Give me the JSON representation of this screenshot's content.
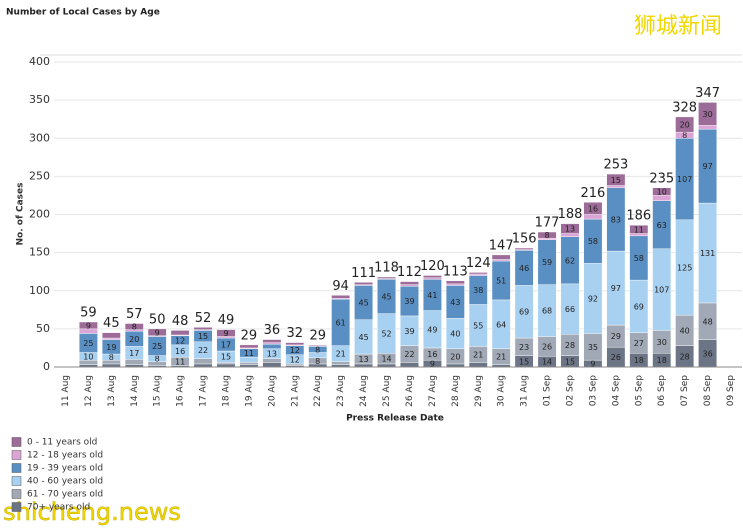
{
  "chart_data": {
    "type": "stacked-bar",
    "title": "Number of Local Cases by Age",
    "y_label": "No. of Cases",
    "x_label": "Press Release Date",
    "watermarks": [
      "狮城新闻",
      "shicheng.news"
    ],
    "categories": [
      "11 Aug",
      "12 Aug",
      "13 Aug",
      "14 Aug",
      "15 Aug",
      "16 Aug",
      "17 Aug",
      "18 Aug",
      "19 Aug",
      "20 Aug",
      "21 Aug",
      "22 Aug",
      "23 Aug",
      "24 Aug",
      "25 Aug",
      "26 Aug",
      "27 Aug",
      "28 Aug",
      "29 Aug",
      "30 Aug",
      "31 Aug",
      "01 Sep",
      "02 Sep",
      "03 Sep",
      "04 Sep",
      "05 Sep",
      "06 Sep",
      "07 Sep",
      "08 Sep",
      "09 Sep"
    ],
    "totals": [
      null,
      59,
      45,
      57,
      50,
      48,
      52,
      49,
      29,
      36,
      32,
      29,
      94,
      111,
      118,
      112,
      120,
      113,
      124,
      147,
      156,
      177,
      188,
      216,
      253,
      186,
      235,
      328,
      347,
      null
    ],
    "series": [
      {
        "name": "0 - 11 years old",
        "color": "#9c6b98",
        "values": [
          null,
          9,
          7,
          8,
          9,
          6,
          3,
          9,
          4,
          4,
          3,
          1,
          4,
          3,
          2,
          4,
          3,
          4,
          2,
          6,
          2,
          8,
          13,
          16,
          15,
          11,
          10,
          20,
          30,
          null
        ]
      },
      {
        "name": "12 - 18 years old",
        "color": "#dba6d6",
        "values": [
          null,
          6,
          2,
          2,
          1,
          1,
          1,
          2,
          1,
          2,
          1,
          1,
          1,
          1,
          1,
          2,
          2,
          2,
          2,
          2,
          1,
          2,
          4,
          6,
          3,
          3,
          7,
          8,
          5,
          null
        ]
      },
      {
        "name": "19 - 39 years old",
        "color": "#5a8fc3",
        "values": [
          null,
          25,
          19,
          20,
          25,
          12,
          15,
          17,
          11,
          6,
          12,
          8,
          61,
          45,
          45,
          39,
          41,
          43,
          38,
          51,
          46,
          59,
          62,
          58,
          83,
          58,
          63,
          107,
          97,
          null
        ]
      },
      {
        "name": "40 - 60 years old",
        "color": "#a8d0f0",
        "values": [
          null,
          10,
          8,
          17,
          8,
          16,
          22,
          15,
          7,
          13,
          12,
          7,
          21,
          45,
          52,
          39,
          49,
          40,
          55,
          64,
          69,
          68,
          66,
          92,
          97,
          69,
          107,
          125,
          131,
          null
        ]
      },
      {
        "name": "61 - 70 years old",
        "color": "#a2a9b6",
        "values": [
          null,
          6,
          5,
          7,
          5,
          11,
          7,
          2,
          3,
          5,
          2,
          8,
          4,
          13,
          14,
          22,
          16,
          20,
          21,
          21,
          23,
          26,
          28,
          35,
          29,
          27,
          30,
          40,
          48,
          null
        ]
      },
      {
        "name": "70+ years old",
        "color": "#6c7585",
        "values": [
          null,
          3,
          4,
          3,
          2,
          2,
          4,
          4,
          3,
          6,
          2,
          4,
          3,
          4,
          4,
          6,
          9,
          4,
          6,
          3,
          15,
          14,
          15,
          9,
          26,
          18,
          18,
          28,
          36,
          null
        ]
      }
    ],
    "ylim": [
      0,
      400
    ],
    "yticks": [
      0,
      50,
      100,
      150,
      200,
      250,
      300,
      350,
      400
    ],
    "grid": true
  }
}
